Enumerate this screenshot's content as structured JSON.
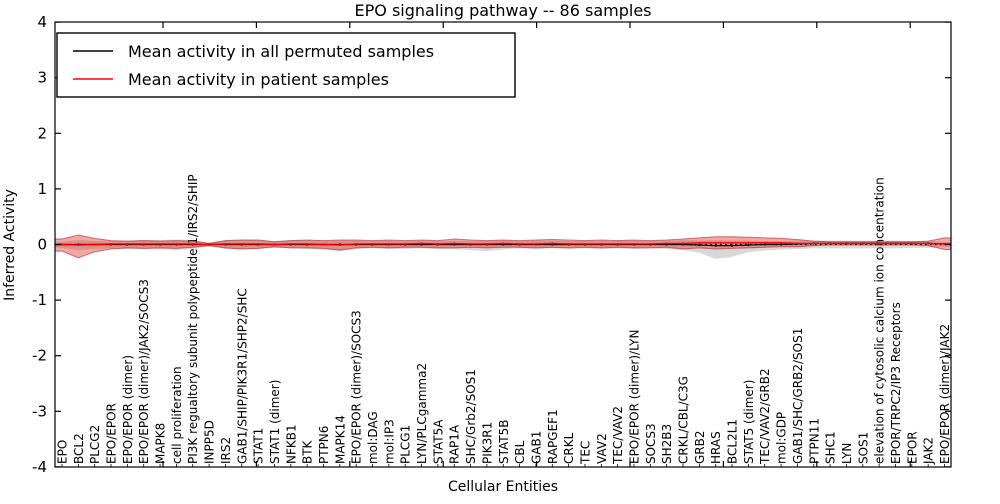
{
  "title": "EPO signaling pathway -- 86 samples",
  "axes": {
    "ylabel": "Inferred Activity",
    "xlabel": "Cellular Entities",
    "yticks": [
      "4",
      "3",
      "2",
      "1",
      "0",
      "-1",
      "-2",
      "-3",
      "-4"
    ],
    "ylim": [
      -4,
      4
    ]
  },
  "legend": {
    "position": "upper left",
    "entries": [
      {
        "label": "Mean activity in all permuted samples",
        "color": "#000000"
      },
      {
        "label": "Mean activity in patient samples",
        "color": "#ff0000"
      }
    ]
  },
  "colors": {
    "patient_line": "#ff0000",
    "permuted_line": "#000000",
    "zero_line": "#000000",
    "patient_band_fill": "rgba(222,45,38,0.42)",
    "patient_band_edge": "rgba(170,20,25,0.55)",
    "permuted_band_fill": "rgba(125,125,125,0.30)",
    "frame": "#000000"
  },
  "chart_data": {
    "type": "line",
    "title": "EPO signaling pathway -- 86 samples",
    "xlabel": "Cellular Entities",
    "ylabel": "Inferred Activity",
    "ylim": [
      -4,
      4
    ],
    "yticks": [
      4,
      3,
      2,
      1,
      0,
      -1,
      -2,
      -3,
      -4
    ],
    "grid": false,
    "legend_position": "upper left",
    "categories": [
      "EPO",
      "BCL2",
      "PLCG2",
      "EPO/EPOR",
      "EPO/EPOR (dimer)",
      "EPO/EPOR (dimer)/JAK2/SOCS3",
      "MAPK8",
      "cell proliferation",
      "PI3K regualtory subunit polypeptide 1/IRS2/SHIP",
      "INPP5D",
      "IRS2",
      "GAB1/SHIP/PIK3R1/SHP2/SHC",
      "STAT1",
      "STAT1 (dimer)",
      "NFKB1",
      "BTK",
      "PTPN6",
      "MAPK14",
      "EPO/EPOR (dimer)/SOCS3",
      "mol:DAG",
      "mol:IP3",
      "PLCG1",
      "LYN/PLCgamma2",
      "STAT5A",
      "RAP1A",
      "SHC/Grb2/SOS1",
      "PIK3R1",
      "STAT5B",
      "CBL",
      "GAB1",
      "RAPGEF1",
      "CRKL",
      "TEC",
      "VAV2",
      "TEC/VAV2",
      "EPO/EPOR (dimer)/LYN",
      "SOCS3",
      "SH2B3",
      "CRKL/CBL/C3G",
      "GRB2",
      "HRAS",
      "BCL2L1",
      "STAT5 (dimer)",
      "TEC/VAV2/GRB2",
      "mol:GDP",
      "GAB1/SHC/GRB2/SOS1",
      "PTPN11",
      "SHC1",
      "LYN",
      "SOS1",
      "elevation of cytosolic calcium ion concentration",
      "EPOR/TRPC2/IP3 Receptors",
      "EPOR",
      "JAK2",
      "EPO/EPOR (dimer)/JAK2"
    ],
    "series": [
      {
        "name": "Mean activity in all permuted samples",
        "values": [
          0,
          0,
          0,
          0,
          0,
          0,
          0,
          0,
          0,
          0,
          0,
          0,
          0,
          0,
          0,
          0,
          0,
          0,
          0,
          0,
          0,
          0,
          0,
          0,
          0,
          0,
          0,
          0,
          0,
          0,
          0,
          0,
          0,
          0,
          0,
          0,
          0,
          0,
          0,
          -0.01,
          -0.02,
          -0.02,
          -0.01,
          0,
          0,
          0.01,
          0.02,
          0.02,
          0.02,
          0.02,
          0.02,
          0.02,
          0.02,
          0.02,
          0.01
        ]
      },
      {
        "name": "Mean activity in patient samples",
        "values": [
          0,
          -0.01,
          0,
          0.01,
          0.01,
          0.01,
          0.01,
          0.01,
          0.01,
          0,
          0.01,
          0.01,
          0.01,
          0,
          0.01,
          0.01,
          0,
          -0.01,
          0.01,
          0.01,
          0.01,
          0.01,
          0.02,
          0.01,
          0.02,
          0.01,
          0.01,
          0.02,
          0.01,
          0.01,
          0.02,
          0.01,
          0.01,
          0.01,
          0.01,
          0.01,
          0.01,
          0.02,
          0.02,
          0.03,
          0.03,
          0.03,
          0.03,
          0.03,
          0.03,
          0.02,
          0.02,
          0.02,
          0.02,
          0.02,
          0.02,
          0.02,
          0.02,
          0.02,
          0.01
        ]
      },
      {
        "name": "patient band upper",
        "values": [
          0.1,
          0.17,
          0.11,
          0.07,
          0.06,
          0.07,
          0.06,
          0.07,
          0.06,
          0.02,
          0.07,
          0.08,
          0.08,
          0.05,
          0.07,
          0.08,
          0.07,
          0.08,
          0.08,
          0.07,
          0.08,
          0.07,
          0.08,
          0.07,
          0.1,
          0.08,
          0.07,
          0.08,
          0.07,
          0.08,
          0.09,
          0.08,
          0.07,
          0.08,
          0.07,
          0.08,
          0.07,
          0.08,
          0.1,
          0.12,
          0.14,
          0.14,
          0.13,
          0.12,
          0.11,
          0.09,
          0.06,
          0.05,
          0.05,
          0.05,
          0.05,
          0.05,
          0.05,
          0.06,
          0.12
        ]
      },
      {
        "name": "patient band lower",
        "values": [
          -0.12,
          -0.24,
          -0.13,
          -0.08,
          -0.06,
          -0.07,
          -0.06,
          -0.07,
          -0.05,
          -0.02,
          -0.06,
          -0.08,
          -0.07,
          -0.04,
          -0.06,
          -0.06,
          -0.07,
          -0.1,
          -0.06,
          -0.05,
          -0.06,
          -0.05,
          -0.05,
          -0.06,
          -0.06,
          -0.05,
          -0.06,
          -0.05,
          -0.05,
          -0.06,
          -0.05,
          -0.06,
          -0.05,
          -0.06,
          -0.05,
          -0.06,
          -0.06,
          -0.05,
          -0.08,
          -0.06,
          -0.08,
          -0.07,
          -0.06,
          -0.05,
          -0.04,
          -0.04,
          -0.02,
          -0.01,
          -0.01,
          -0.01,
          -0.01,
          -0.01,
          -0.01,
          -0.02,
          -0.09
        ]
      },
      {
        "name": "permuted band upper",
        "values": [
          0.05,
          0.08,
          0.06,
          0.06,
          0.07,
          0.08,
          0.08,
          0.09,
          0.08,
          0.03,
          0.08,
          0.09,
          0.08,
          0.06,
          0.08,
          0.08,
          0.07,
          0.07,
          0.07,
          0.06,
          0.07,
          0.06,
          0.07,
          0.06,
          0.07,
          0.06,
          0.06,
          0.07,
          0.06,
          0.07,
          0.07,
          0.06,
          0.07,
          0.06,
          0.07,
          0.07,
          0.06,
          0.07,
          0.08,
          0.07,
          0.08,
          0.07,
          0.07,
          0.06,
          0.06,
          0.07,
          0.07,
          0.07,
          0.07,
          0.07,
          0.07,
          0.07,
          0.06,
          0.06,
          0.04
        ]
      },
      {
        "name": "permuted band lower",
        "values": [
          -0.06,
          -0.1,
          -0.08,
          -0.07,
          -0.08,
          -0.08,
          -0.09,
          -0.1,
          -0.08,
          -0.03,
          -0.08,
          -0.09,
          -0.08,
          -0.06,
          -0.07,
          -0.08,
          -0.09,
          -0.12,
          -0.08,
          -0.07,
          -0.08,
          -0.08,
          -0.07,
          -0.08,
          -0.09,
          -0.1,
          -0.12,
          -0.09,
          -0.07,
          -0.08,
          -0.07,
          -0.08,
          -0.07,
          -0.08,
          -0.07,
          -0.08,
          -0.07,
          -0.08,
          -0.1,
          -0.15,
          -0.26,
          -0.22,
          -0.14,
          -0.11,
          -0.09,
          -0.08,
          -0.07,
          -0.07,
          -0.07,
          -0.07,
          -0.07,
          -0.07,
          -0.06,
          -0.06,
          -0.04
        ]
      }
    ]
  }
}
